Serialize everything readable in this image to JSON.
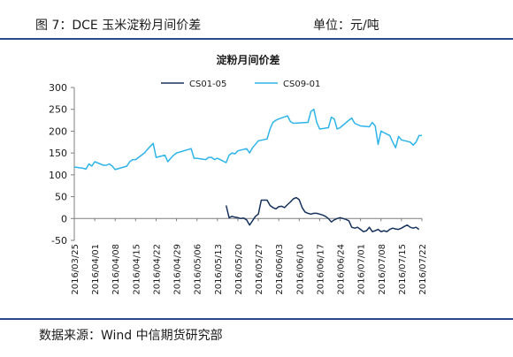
{
  "figure": {
    "title": "图 7：DCE 玉米淀粉月间价差",
    "unit": "单位：元/吨",
    "source": "数据来源：Wind 中信期货研究部"
  },
  "colors": {
    "rule": "#2a4a8a",
    "series_1": "#16325c",
    "series_2": "#2fb4e9",
    "axis": "#7f7f7f",
    "text": "#1a1a1a"
  },
  "chart_data": {
    "type": "line",
    "title": "淀粉月间价差",
    "xlabel": "",
    "ylabel": "",
    "ylim": [
      -50,
      300
    ],
    "yticks": [
      -50,
      0,
      50,
      100,
      150,
      200,
      250,
      300
    ],
    "grid": false,
    "legend": "top",
    "x_ticks": [
      "2016/03/25",
      "2016/04/01",
      "2016/04/08",
      "2016/04/15",
      "2016/04/22",
      "2016/04/29",
      "2016/05/06",
      "2016/05/13",
      "2016/05/20",
      "2016/05/27",
      "2016/06/03",
      "2016/06/10",
      "2016/06/17",
      "2016/06/24",
      "2016/07/01",
      "2016/07/08",
      "2016/07/15",
      "2016/07/22"
    ],
    "x_range": [
      "2016/03/25",
      "2016/07/22"
    ],
    "series": [
      {
        "name": "CS01-05",
        "points": [
          [
            "2016/05/16",
            30
          ],
          [
            "2016/05/17",
            2
          ],
          [
            "2016/05/18",
            5
          ],
          [
            "2016/05/19",
            3
          ],
          [
            "2016/05/20",
            2
          ],
          [
            "2016/05/21",
            0
          ],
          [
            "2016/05/22",
            1
          ],
          [
            "2016/05/23",
            -3
          ],
          [
            "2016/05/24",
            -15
          ],
          [
            "2016/05/25",
            -5
          ],
          [
            "2016/05/26",
            5
          ],
          [
            "2016/05/27",
            10
          ],
          [
            "2016/05/28",
            42
          ],
          [
            "2016/05/29",
            42
          ],
          [
            "2016/05/30",
            42
          ],
          [
            "2016/05/31",
            30
          ],
          [
            "2016/06/01",
            25
          ],
          [
            "2016/06/02",
            22
          ],
          [
            "2016/06/03",
            27
          ],
          [
            "2016/06/04",
            28
          ],
          [
            "2016/06/05",
            25
          ],
          [
            "2016/06/06",
            32
          ],
          [
            "2016/06/07",
            38
          ],
          [
            "2016/06/08",
            45
          ],
          [
            "2016/06/09",
            48
          ],
          [
            "2016/06/10",
            43
          ],
          [
            "2016/06/11",
            25
          ],
          [
            "2016/06/12",
            15
          ],
          [
            "2016/06/13",
            12
          ],
          [
            "2016/06/14",
            10
          ],
          [
            "2016/06/15",
            12
          ],
          [
            "2016/06/16",
            12
          ],
          [
            "2016/06/17",
            10
          ],
          [
            "2016/06/18",
            8
          ],
          [
            "2016/06/19",
            5
          ],
          [
            "2016/06/20",
            0
          ],
          [
            "2016/06/21",
            -8
          ],
          [
            "2016/06/22",
            -3
          ],
          [
            "2016/06/23",
            0
          ],
          [
            "2016/06/24",
            2
          ],
          [
            "2016/06/25",
            0
          ],
          [
            "2016/06/26",
            -2
          ],
          [
            "2016/06/27",
            -5
          ],
          [
            "2016/06/28",
            -20
          ],
          [
            "2016/06/29",
            -22
          ],
          [
            "2016/06/30",
            -20
          ],
          [
            "2016/07/01",
            -25
          ],
          [
            "2016/07/02",
            -30
          ],
          [
            "2016/07/03",
            -28
          ],
          [
            "2016/07/04",
            -20
          ],
          [
            "2016/07/05",
            -30
          ],
          [
            "2016/07/06",
            -28
          ],
          [
            "2016/07/07",
            -25
          ],
          [
            "2016/07/08",
            -30
          ],
          [
            "2016/07/09",
            -28
          ],
          [
            "2016/07/10",
            -30
          ],
          [
            "2016/07/11",
            -25
          ],
          [
            "2016/07/12",
            -22
          ],
          [
            "2016/07/13",
            -24
          ],
          [
            "2016/07/14",
            -25
          ],
          [
            "2016/07/15",
            -22
          ],
          [
            "2016/07/16",
            -18
          ],
          [
            "2016/07/17",
            -15
          ],
          [
            "2016/07/18",
            -20
          ],
          [
            "2016/07/19",
            -22
          ],
          [
            "2016/07/20",
            -20
          ],
          [
            "2016/07/21",
            -25
          ]
        ]
      },
      {
        "name": "CS09-01",
        "points": [
          [
            "2016/03/25",
            118
          ],
          [
            "2016/03/28",
            115
          ],
          [
            "2016/03/29",
            113
          ],
          [
            "2016/03/30",
            125
          ],
          [
            "2016/03/31",
            120
          ],
          [
            "2016/04/01",
            130
          ],
          [
            "2016/04/04",
            122
          ],
          [
            "2016/04/05",
            122
          ],
          [
            "2016/04/06",
            125
          ],
          [
            "2016/04/07",
            120
          ],
          [
            "2016/04/08",
            112
          ],
          [
            "2016/04/11",
            118
          ],
          [
            "2016/04/12",
            120
          ],
          [
            "2016/04/13",
            130
          ],
          [
            "2016/04/14",
            135
          ],
          [
            "2016/04/15",
            135
          ],
          [
            "2016/04/18",
            150
          ],
          [
            "2016/04/19",
            158
          ],
          [
            "2016/04/20",
            165
          ],
          [
            "2016/04/21",
            172
          ],
          [
            "2016/04/22",
            140
          ],
          [
            "2016/04/25",
            145
          ],
          [
            "2016/04/26",
            130
          ],
          [
            "2016/04/27",
            138
          ],
          [
            "2016/04/28",
            145
          ],
          [
            "2016/04/29",
            150
          ],
          [
            "2016/05/03",
            158
          ],
          [
            "2016/05/04",
            160
          ],
          [
            "2016/05/05",
            138
          ],
          [
            "2016/05/06",
            138
          ],
          [
            "2016/05/09",
            135
          ],
          [
            "2016/05/10",
            140
          ],
          [
            "2016/05/11",
            140
          ],
          [
            "2016/05/12",
            135
          ],
          [
            "2016/05/13",
            138
          ],
          [
            "2016/05/16",
            128
          ],
          [
            "2016/05/17",
            145
          ],
          [
            "2016/05/18",
            150
          ],
          [
            "2016/05/19",
            148
          ],
          [
            "2016/05/20",
            155
          ],
          [
            "2016/05/23",
            160
          ],
          [
            "2016/05/24",
            150
          ],
          [
            "2016/05/25",
            162
          ],
          [
            "2016/05/26",
            170
          ],
          [
            "2016/05/27",
            178
          ],
          [
            "2016/05/30",
            182
          ],
          [
            "2016/05/31",
            205
          ],
          [
            "2016/06/01",
            220
          ],
          [
            "2016/06/02",
            225
          ],
          [
            "2016/06/03",
            228
          ],
          [
            "2016/06/06",
            235
          ],
          [
            "2016/06/07",
            222
          ],
          [
            "2016/06/08",
            218
          ],
          [
            "2016/06/13",
            220
          ],
          [
            "2016/06/14",
            245
          ],
          [
            "2016/06/15",
            250
          ],
          [
            "2016/06/16",
            220
          ],
          [
            "2016/06/17",
            205
          ],
          [
            "2016/06/20",
            208
          ],
          [
            "2016/06/21",
            232
          ],
          [
            "2016/06/22",
            228
          ],
          [
            "2016/06/23",
            205
          ],
          [
            "2016/06/24",
            208
          ],
          [
            "2016/06/27",
            225
          ],
          [
            "2016/06/28",
            230
          ],
          [
            "2016/06/29",
            218
          ],
          [
            "2016/06/30",
            215
          ],
          [
            "2016/07/01",
            212
          ],
          [
            "2016/07/04",
            210
          ],
          [
            "2016/07/05",
            220
          ],
          [
            "2016/07/06",
            212
          ],
          [
            "2016/07/07",
            170
          ],
          [
            "2016/07/08",
            200
          ],
          [
            "2016/07/11",
            190
          ],
          [
            "2016/07/12",
            175
          ],
          [
            "2016/07/13",
            162
          ],
          [
            "2016/07/14",
            188
          ],
          [
            "2016/07/15",
            180
          ],
          [
            "2016/07/18",
            175
          ],
          [
            "2016/07/19",
            168
          ],
          [
            "2016/07/20",
            175
          ],
          [
            "2016/07/21",
            190
          ],
          [
            "2016/07/22",
            190
          ]
        ]
      }
    ]
  }
}
